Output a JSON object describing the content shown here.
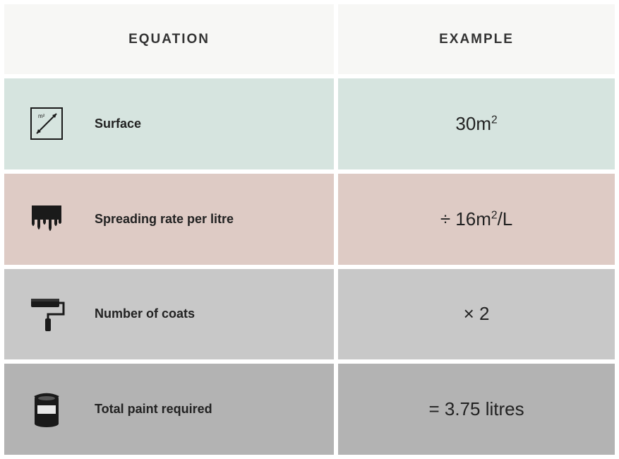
{
  "header": {
    "left": "EQUATION",
    "right": "EXAMPLE",
    "bg": "#f7f7f5"
  },
  "rows": [
    {
      "icon": "surface",
      "label": "Surface",
      "value_html": "30m<span class='sup'>2</span>",
      "bg": "#d6e4df"
    },
    {
      "icon": "drip",
      "label": "Spreading rate per litre",
      "value_html": "÷ 16m<span class='sup'>2</span>/L",
      "bg": "#decbc5"
    },
    {
      "icon": "roller",
      "label": "Number of coats",
      "value_html": "× 2",
      "bg": "#c8c8c8"
    },
    {
      "icon": "can",
      "label": "Total paint required",
      "value_html": "= 3.75 litres",
      "bg": "#b3b3b3"
    }
  ],
  "colors": {
    "icon": "#1a1a1a",
    "text": "#222222"
  }
}
